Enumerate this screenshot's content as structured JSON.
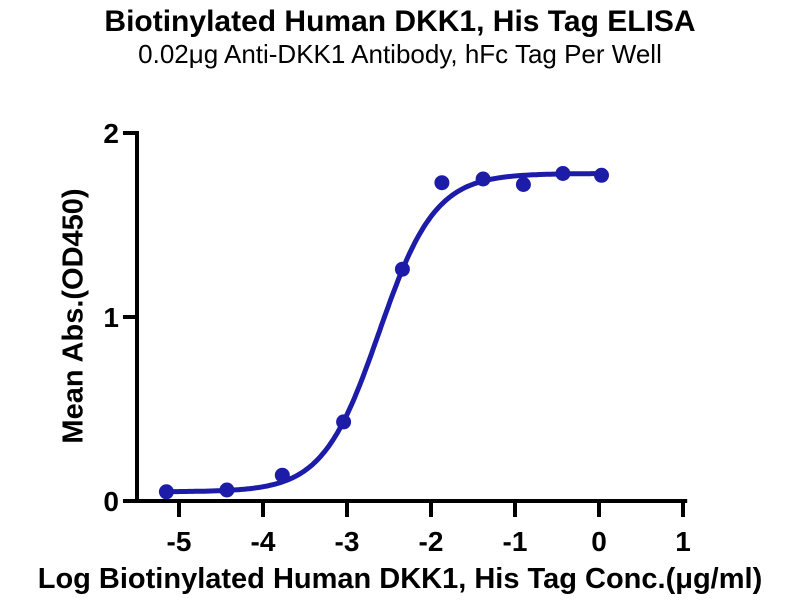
{
  "chart_data": {
    "type": "scatter",
    "title": "Biotinylated Human DKK1, His Tag ELISA",
    "subtitle": "0.02μg Anti-DKK1 Antibody, hFc Tag Per Well",
    "xlabel": "Log Biotinylated Human DKK1, His Tag Conc.(μg/ml)",
    "ylabel": "Mean Abs.(OD450)",
    "x_ticks": [
      "-5",
      "-4",
      "-3",
      "-2",
      "-1",
      "0",
      "1"
    ],
    "y_ticks": [
      "0",
      "1",
      "2"
    ],
    "xlim": [
      -5.5,
      1.05
    ],
    "ylim": [
      0,
      2
    ],
    "grid": false,
    "legend_position": "none",
    "axis_color": "#000000",
    "series": [
      {
        "color": "#1c1ca8",
        "marker": "circle",
        "points": [
          {
            "x": -5.15,
            "y": 0.05
          },
          {
            "x": -4.43,
            "y": 0.06
          },
          {
            "x": -3.77,
            "y": 0.14
          },
          {
            "x": -3.04,
            "y": 0.43
          },
          {
            "x": -2.34,
            "y": 1.26
          },
          {
            "x": -1.87,
            "y": 1.73
          },
          {
            "x": -1.38,
            "y": 1.75
          },
          {
            "x": -0.9,
            "y": 1.72
          },
          {
            "x": -0.43,
            "y": 1.78
          },
          {
            "x": 0.03,
            "y": 1.77
          }
        ]
      }
    ],
    "fit_curve": {
      "model": "4PL sigmoidal",
      "bottom": 0.05,
      "top": 1.78,
      "log_ec50": -2.62,
      "hill_slope": 1.3,
      "x_start": -5.15,
      "x_end": 0.03
    }
  }
}
